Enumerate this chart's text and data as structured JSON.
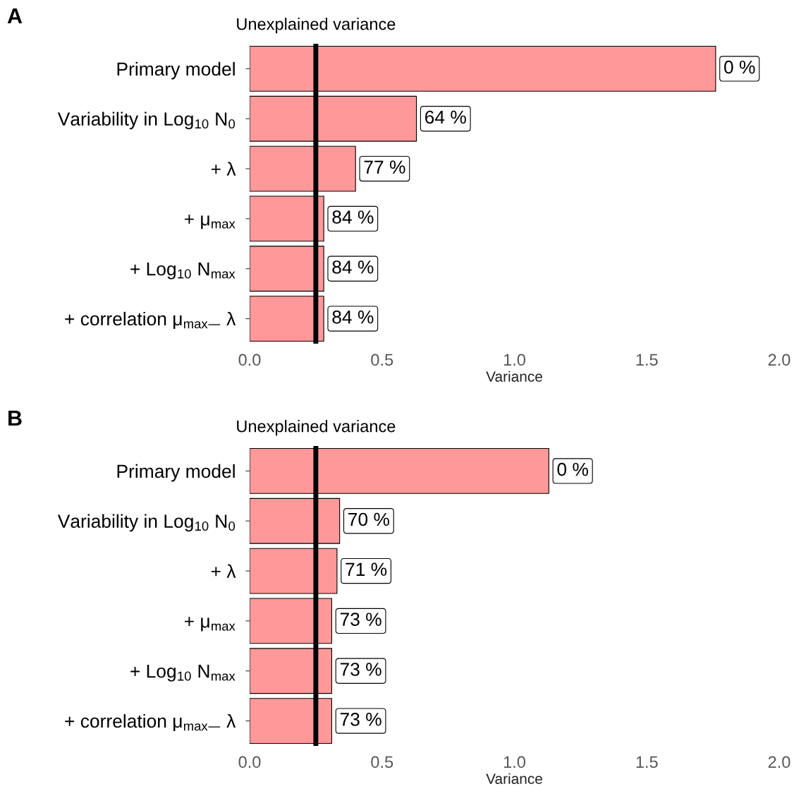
{
  "chart_data": [
    {
      "type": "bar",
      "title": "A",
      "orientation": "horizontal",
      "categories": [
        "Primary model",
        "Variability in Log$_{10}$ N$_{0}$",
        "+ λ",
        "+ μ$_{max}$",
        "+ Log$_{10}$ N$_{max}$",
        "+ correlation μ$_{max—}$ λ"
      ],
      "values": [
        1.76,
        0.63,
        0.4,
        0.28,
        0.28,
        0.28
      ],
      "color": "#ff9999",
      "xlim": [
        0,
        2
      ],
      "xticks": [
        {
          "value": 0,
          "label": "0.0"
        },
        {
          "value": 0.5,
          "label": "0.5"
        },
        {
          "value": 1,
          "label": "1.0"
        },
        {
          "value": 1.5,
          "label": "1.5"
        },
        {
          "value": 2,
          "label": "2.0"
        }
      ],
      "xlabel": "Variance",
      "ref_lines": [
        {
          "axis": "x",
          "value": 0.25,
          "label": "Unexplained variance",
          "color": "#000000"
        }
      ],
      "grid": false,
      "legend": false,
      "annotations": [
        {
          "text": "0 %",
          "x": 1.76,
          "y": "Primary model"
        },
        {
          "text": "64 %",
          "x": 0.63,
          "y": "Variability in Log$_{10}$ N$_{0}$"
        },
        {
          "text": "77 %",
          "x": 0.4,
          "y": "+ λ"
        },
        {
          "text": "84 %",
          "x": 0.28,
          "y": "+ μ$_{max}$"
        },
        {
          "text": "84 %",
          "x": 0.28,
          "y": "+ Log$_{10}$ N$_{max}$"
        },
        {
          "text": "84 %",
          "x": 0.28,
          "y": "+ correlation μ$_{max—}$ λ"
        }
      ]
    },
    {
      "type": "bar",
      "title": "B",
      "orientation": "horizontal",
      "categories": [
        "Primary model",
        "Variability in Log$_{10}$ N$_{0}$",
        "+ λ",
        "+ μ$_{max}$",
        "+ Log$_{10}$ N$_{max}$",
        "+ correlation μ$_{max—}$ λ"
      ],
      "values": [
        1.13,
        0.34,
        0.33,
        0.31,
        0.31,
        0.31
      ],
      "color": "#ff9999",
      "xlim": [
        0,
        2
      ],
      "xticks": [
        {
          "value": 0,
          "label": "0.0"
        },
        {
          "value": 0.5,
          "label": "0.5"
        },
        {
          "value": 1,
          "label": "1.0"
        },
        {
          "value": 1.5,
          "label": "1.5"
        },
        {
          "value": 2,
          "label": "2.0"
        }
      ],
      "xlabel": "Variance",
      "ref_lines": [
        {
          "axis": "x",
          "value": 0.25,
          "label": "Unexplained variance",
          "color": "#000000"
        }
      ],
      "grid": false,
      "legend": false,
      "annotations": [
        {
          "text": "0 %",
          "x": 1.13,
          "y": "Primary model"
        },
        {
          "text": "70 %",
          "x": 0.34,
          "y": "Variability in Log$_{10}$ N$_{0}$"
        },
        {
          "text": "71 %",
          "x": 0.33,
          "y": "+ λ"
        },
        {
          "text": "73 %",
          "x": 0.31,
          "y": "+ μ$_{max}$"
        },
        {
          "text": "73 %",
          "x": 0.31,
          "y": "+ Log$_{10}$ N$_{max}$"
        },
        {
          "text": "73 %",
          "x": 0.31,
          "y": "+ correlation μ$_{max—}$ λ"
        }
      ]
    }
  ]
}
